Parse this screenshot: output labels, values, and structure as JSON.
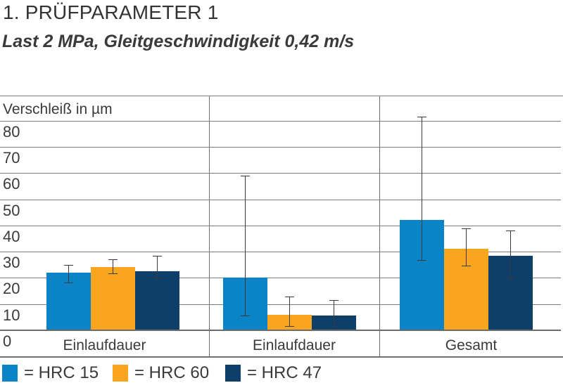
{
  "header": {
    "title": "1. PRÜFPARAMETER 1",
    "subtitle": "Last 2 MPa, Gleitgeschwindigkeit 0,42 m/s"
  },
  "chart_data": {
    "type": "bar",
    "title": "1. PRÜFPARAMETER 1",
    "subtitle": "Last 2 MPa, Gleitgeschwindigkeit 0,42 m/s",
    "ylabel": "Verschleiß in µm",
    "ylim": [
      0,
      90
    ],
    "yticks": [
      0,
      10,
      20,
      30,
      40,
      50,
      60,
      70,
      80
    ],
    "grid": true,
    "categories": [
      "Einlaufdauer",
      "Einlaufdauer",
      "Gesamt"
    ],
    "series": [
      {
        "name": "HRC 15",
        "color": "#0A84C6",
        "values": [
          22,
          20,
          42
        ],
        "error_low": [
          18.5,
          6,
          27
        ],
        "error_high": [
          25,
          59,
          81.5
        ]
      },
      {
        "name": "HRC 60",
        "color": "#F9A51D",
        "values": [
          24,
          6,
          31
        ],
        "error_low": [
          22,
          2,
          25
        ],
        "error_high": [
          27,
          13,
          39
        ]
      },
      {
        "name": "HRC 47",
        "color": "#0E3F6A",
        "values": [
          22.5,
          5.5,
          28.5
        ],
        "error_low": [
          20.5,
          0.5,
          20.5
        ],
        "error_high": [
          28.5,
          11.5,
          38
        ]
      }
    ],
    "legend_position": "bottom"
  },
  "legend": {
    "items": [
      {
        "color": "#0A84C6",
        "label": "= HRC 15"
      },
      {
        "color": "#F9A51D",
        "label": "= HRC 60"
      },
      {
        "color": "#0E3F6A",
        "label": "= HRC 47"
      }
    ]
  }
}
